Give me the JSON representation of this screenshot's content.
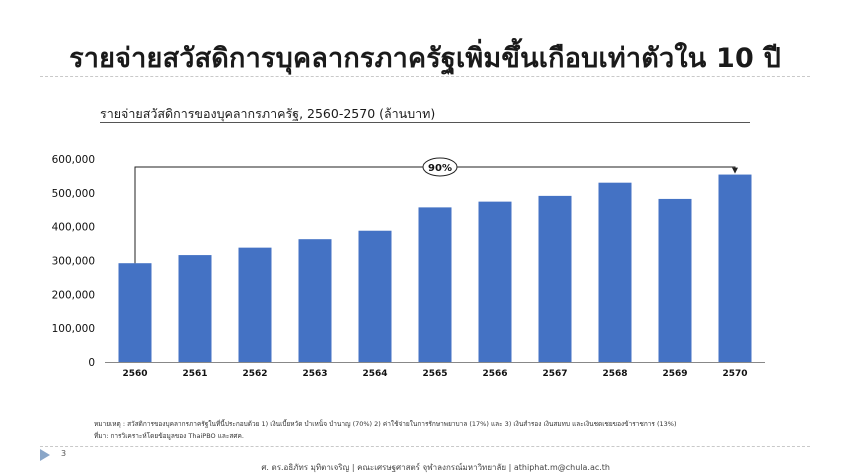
{
  "slide": {
    "title": "รายจ่ายสวัสดิการบุคลากรภาครัฐเพิ่มขึ้นเกือบเท่าตัวใน 10 ปี",
    "page_number": "3",
    "footer": "ศ. ดร.อธิภัทร มุทิตาเจริญ | คณะเศรษฐศาสตร์ จุฬาลงกรณ์มหาวิทยาลัย | athiphat.m@chula.ac.th",
    "note_line1": "หมายเหตุ : สวัสดิการของบุคลากรภาครัฐในที่นี้ประกอบด้วย 1) เงินเบี้ยหวัด บำเหน็จ บำนาญ (70%) 2) ค่าใช้จ่ายในการรักษาพยาบาล (17%) และ 3) เงินสำรอง เงินสมทบ และเงินชดเชยของข้าราชการ (13%)",
    "note_line2": "ที่มา: การวิเคราะห์โดยข้อมูลของ ThaiPBO และสศค."
  },
  "chart_data": {
    "type": "bar",
    "title": "รายจ่ายสวัสดิการของบุคลากรภาครัฐ, 2560-2570 (ล้านบาท)",
    "categories": [
      "2560",
      "2561",
      "2562",
      "2563",
      "2564",
      "2565",
      "2566",
      "2567",
      "2568",
      "2569",
      "2570"
    ],
    "values": [
      292000,
      316000,
      338000,
      363000,
      388000,
      457000,
      474000,
      491000,
      530000,
      482000,
      554000
    ],
    "ylim": [
      0,
      600000
    ],
    "yticks": [
      "0",
      "100,000",
      "200,000",
      "300,000",
      "400,000",
      "500,000",
      "600,000"
    ],
    "bar_color": "#4472C4",
    "annotation": {
      "label": "90%",
      "from": "2560",
      "to": "2570"
    },
    "grid": false,
    "legend": "none"
  }
}
